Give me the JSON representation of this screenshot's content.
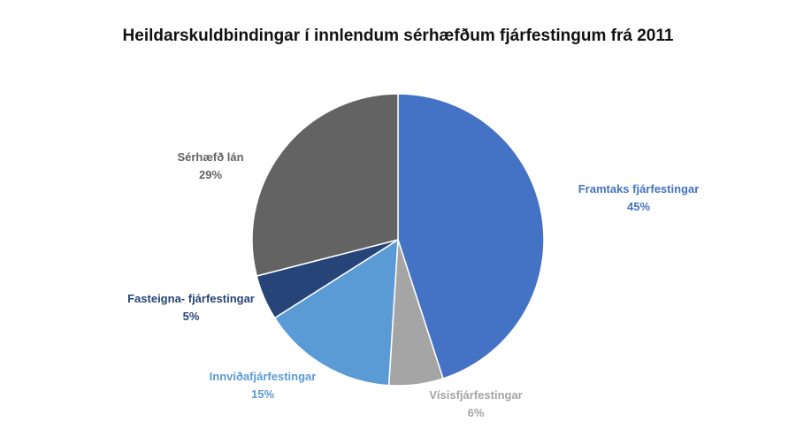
{
  "chart_data": {
    "type": "pie",
    "title": "Heildarskuldbindingar í innlendum sérhæfðum fjárfestingum frá 2011",
    "slices": [
      {
        "name": "Framtaks fjárfestingar",
        "value": 45,
        "label": "45%",
        "color": "#4472C4"
      },
      {
        "name": "Vísisfjárfestingar",
        "value": 6,
        "label": "6%",
        "color": "#A5A5A5"
      },
      {
        "name": "Innviðafjárfestingar",
        "value": 15,
        "label": "15%",
        "color": "#5B9BD5"
      },
      {
        "name": "Fasteigna- fjárfestingar",
        "value": 5,
        "label": "5%",
        "color": "#264478"
      },
      {
        "name": "Sérhæfð lán",
        "value": 29,
        "label": "29%",
        "color": "#636363"
      }
    ],
    "legend": "none",
    "label_colors": [
      "#4472C4",
      "#A5A5A5",
      "#5B9BD5",
      "#264478",
      "#636363"
    ]
  }
}
